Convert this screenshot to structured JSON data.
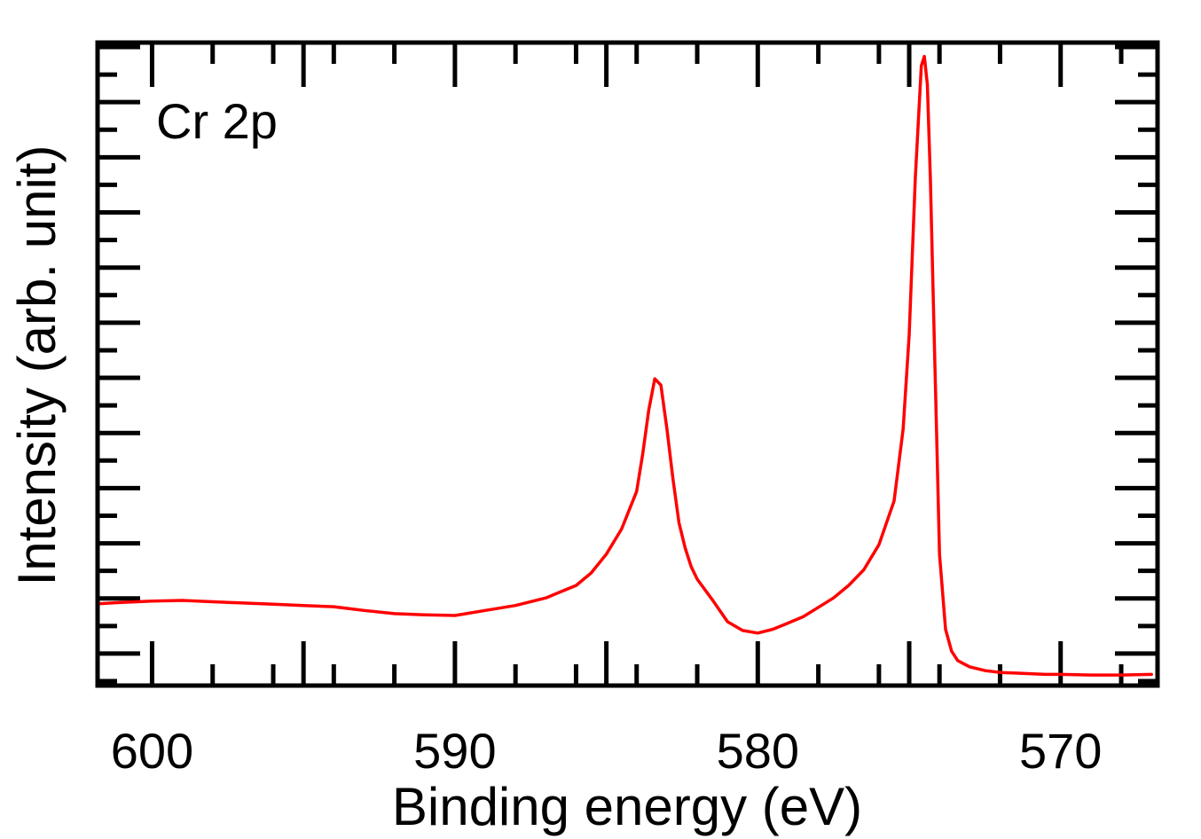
{
  "chart_data": {
    "type": "line",
    "annotation": "Cr 2p",
    "xlabel": "Binding energy (eV)",
    "ylabel": "Intensity (arb. unit)",
    "xlim": [
      601.8,
      566.8
    ],
    "x_reversed": true,
    "ylim": [
      0.0,
      1.0
    ],
    "y_tick_labels_shown": false,
    "x_ticks": [
      600,
      590,
      580,
      570
    ],
    "x_tick_labels": [
      "600",
      "590",
      "580",
      "570"
    ],
    "grid": false,
    "legend": "none",
    "series": [
      {
        "color": "#ff0000",
        "x": [
          601.7,
          601,
          600,
          599,
          598,
          597,
          596,
          595,
          594,
          593,
          592,
          591,
          590,
          589,
          588,
          587,
          586,
          585.5,
          585,
          584.5,
          584,
          583.8,
          583.6,
          583.4,
          583.2,
          583,
          582.8,
          582.6,
          582.4,
          582.2,
          582,
          581.5,
          581,
          580.5,
          580,
          579.5,
          579,
          578.5,
          578,
          577.5,
          577,
          576.5,
          576,
          575.5,
          575.2,
          575,
          574.8,
          574.6,
          574.5,
          574.4,
          574.3,
          574.2,
          574.1,
          574,
          573.8,
          573.6,
          573.4,
          573.2,
          573,
          572.5,
          572,
          571.5,
          571,
          570.5,
          570,
          569,
          568,
          567
        ],
        "y": [
          0.121,
          0.123,
          0.125,
          0.126,
          0.124,
          0.122,
          0.12,
          0.118,
          0.116,
          0.11,
          0.105,
          0.103,
          0.102,
          0.11,
          0.118,
          0.13,
          0.15,
          0.17,
          0.2,
          0.24,
          0.3,
          0.36,
          0.43,
          0.48,
          0.47,
          0.4,
          0.32,
          0.25,
          0.21,
          0.18,
          0.16,
          0.127,
          0.092,
          0.078,
          0.074,
          0.08,
          0.09,
          0.1,
          0.115,
          0.13,
          0.15,
          0.175,
          0.215,
          0.285,
          0.4,
          0.55,
          0.8,
          0.98,
          0.995,
          0.95,
          0.8,
          0.6,
          0.4,
          0.2,
          0.08,
          0.045,
          0.03,
          0.025,
          0.02,
          0.014,
          0.011,
          0.01,
          0.009,
          0.008,
          0.008,
          0.007,
          0.007,
          0.008
        ]
      }
    ]
  }
}
